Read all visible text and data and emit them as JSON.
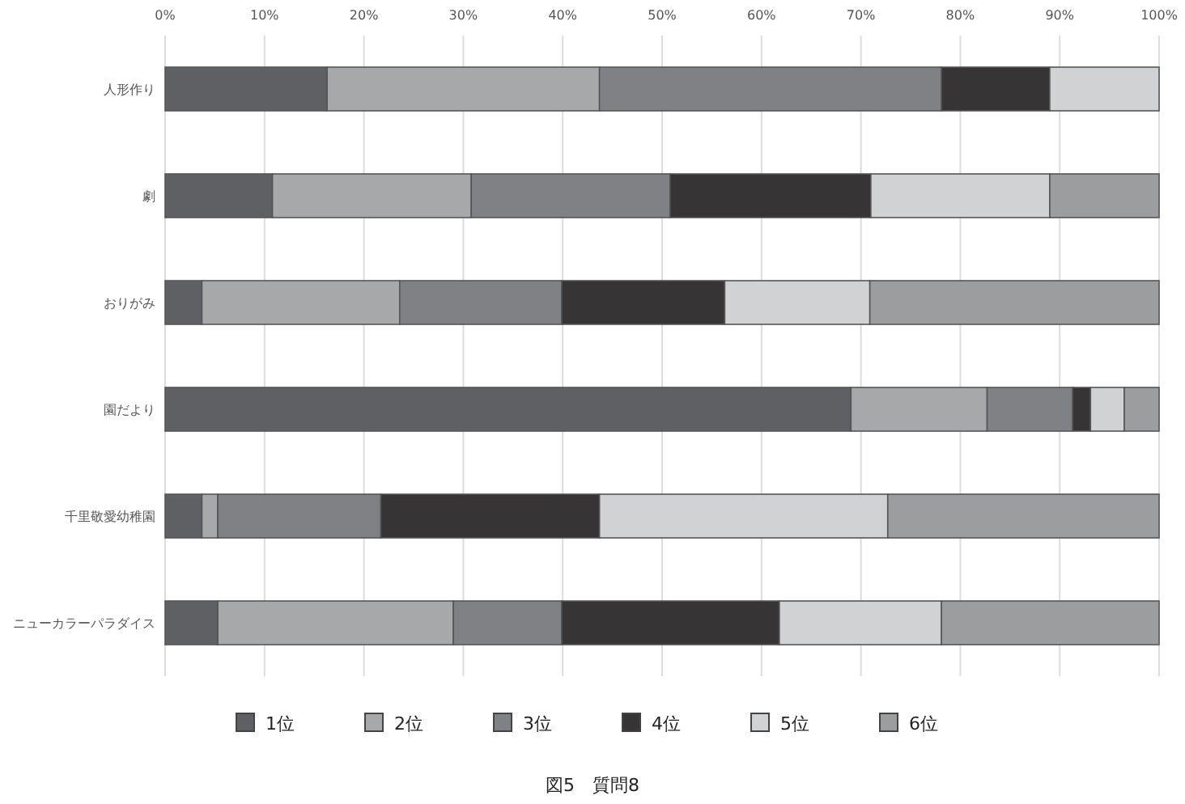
{
  "chart_data": {
    "type": "bar",
    "orientation": "horizontal",
    "stacked": true,
    "title": "図5　質問8",
    "categories": [
      "人形作り",
      "劇",
      "おりがみ",
      "園だより",
      "千里敬愛幼稚園",
      "ニューカラーパラダイス"
    ],
    "series": [
      {
        "name": "1位",
        "color": "#5f6063",
        "values": [
          16.3,
          10.8,
          3.7,
          69.0,
          3.7,
          5.3
        ]
      },
      {
        "name": "2位",
        "color": "#a6a8aa",
        "values": [
          27.4,
          20.0,
          19.9,
          13.7,
          1.6,
          23.7
        ]
      },
      {
        "name": "3位",
        "color": "#808184",
        "values": [
          34.4,
          20.0,
          16.3,
          8.6,
          16.4,
          10.9
        ]
      },
      {
        "name": "4位",
        "color": "#363435",
        "values": [
          10.9,
          20.2,
          16.4,
          1.8,
          22.0,
          21.9
        ]
      },
      {
        "name": "5位",
        "color": "#d0d2d3",
        "values": [
          11.0,
          18.0,
          14.6,
          3.4,
          29.0,
          16.3
        ]
      },
      {
        "name": "6位",
        "color": "#9c9d9f",
        "values": [
          0,
          11.0,
          29.1,
          3.5,
          27.3,
          21.9
        ]
      }
    ],
    "xlim": [
      0,
      100
    ],
    "xticks": [
      {
        "value": 0,
        "label": "0%"
      },
      {
        "value": 10,
        "label": "10%"
      },
      {
        "value": 20,
        "label": "20%"
      },
      {
        "value": 30,
        "label": "30%"
      },
      {
        "value": 40,
        "label": "40%"
      },
      {
        "value": 50,
        "label": "50%"
      },
      {
        "value": 60,
        "label": "60%"
      },
      {
        "value": 70,
        "label": "70%"
      },
      {
        "value": 80,
        "label": "80%"
      },
      {
        "value": 90,
        "label": "90%"
      },
      {
        "value": 100,
        "label": "100%"
      }
    ],
    "grid": "x",
    "legend": "bottom"
  }
}
